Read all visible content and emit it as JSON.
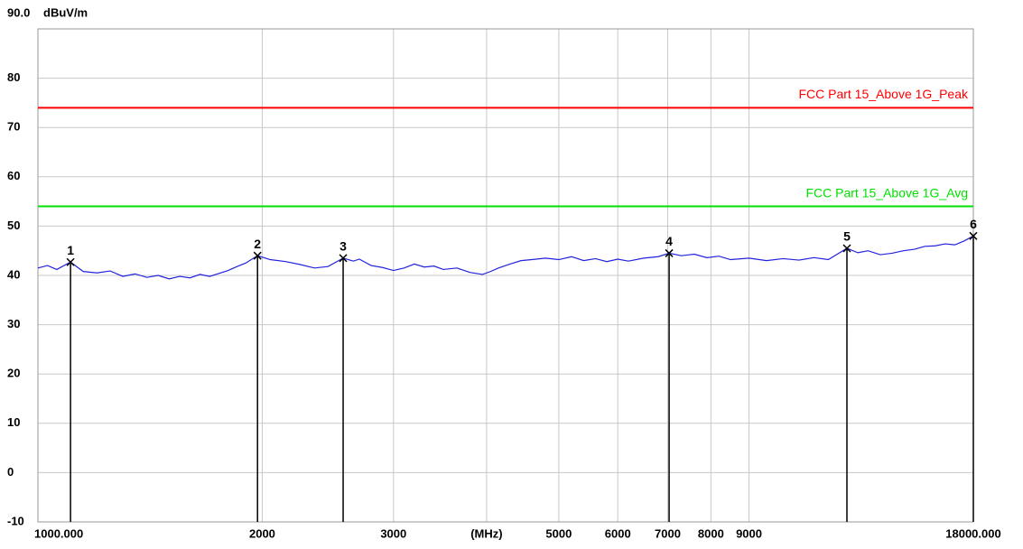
{
  "chart_data": {
    "type": "line",
    "ylabel": "dBuV/m",
    "xscale": "log",
    "grid": true,
    "xlim": [
      1000,
      18000
    ],
    "ylim": [
      -10,
      90
    ],
    "xticks": [
      {
        "value": 1000,
        "label": "1000.000"
      },
      2000,
      3000,
      {
        "value": 4000,
        "label": "(MHz)"
      },
      5000,
      6000,
      7000,
      8000,
      9000,
      {
        "value": 18000,
        "label": "18000.000"
      }
    ],
    "yticks": [
      {
        "value": 90,
        "label": "90.0"
      },
      80,
      70,
      60,
      50,
      40,
      30,
      20,
      10,
      0,
      -10
    ],
    "limits": [
      {
        "name": "FCC Part 15_Above 1G_Peak",
        "value": 74,
        "color": "#ff0000"
      },
      {
        "name": "FCC Part 15_Above 1G_Avg",
        "value": 54,
        "color": "#00e000"
      }
    ],
    "series": [
      {
        "color": "#2222dd",
        "x": [
          1000,
          1030,
          1060,
          1106,
          1150,
          1200,
          1250,
          1300,
          1350,
          1400,
          1450,
          1500,
          1550,
          1600,
          1650,
          1700,
          1750,
          1800,
          1850,
          1900,
          1971,
          2050,
          2150,
          2250,
          2350,
          2450,
          2568,
          2650,
          2700,
          2800,
          2900,
          3000,
          3100,
          3200,
          3300,
          3400,
          3500,
          3650,
          3800,
          3950,
          4050,
          4150,
          4300,
          4450,
          4600,
          4800,
          5000,
          5200,
          5400,
          5600,
          5800,
          6000,
          6200,
          6500,
          6800,
          7031,
          7300,
          7600,
          7900,
          8200,
          8500,
          9000,
          9500,
          10000,
          10500,
          11000,
          11500,
          12180,
          12600,
          13000,
          13500,
          14000,
          14500,
          15000,
          15500,
          16000,
          16500,
          17000,
          17500,
          18000
        ],
        "values": [
          41.5,
          42,
          41.2,
          42.7,
          40.8,
          40.5,
          40.9,
          39.8,
          40.3,
          39.6,
          40,
          39.3,
          39.8,
          39.5,
          40.2,
          39.8,
          40.4,
          41,
          41.8,
          42.5,
          44,
          43.2,
          42.8,
          42.2,
          41.5,
          41.8,
          43.5,
          42.9,
          43.3,
          42,
          41.6,
          41,
          41.5,
          42.3,
          41.7,
          41.9,
          41.2,
          41.5,
          40.6,
          40.2,
          40.8,
          41.5,
          42.3,
          43,
          43.2,
          43.5,
          43.2,
          43.8,
          43,
          43.4,
          42.8,
          43.3,
          42.9,
          43.5,
          43.8,
          44.5,
          44,
          44.3,
          43.6,
          43.9,
          43.2,
          43.5,
          43,
          43.4,
          43.1,
          43.6,
          43.2,
          45.5,
          44.6,
          45,
          44.2,
          44.5,
          45,
          45.3,
          45.9,
          46,
          46.4,
          46.2,
          47,
          48
        ]
      }
    ],
    "markers": [
      {
        "label": "1",
        "x": 1106,
        "value": 42.7
      },
      {
        "label": "2",
        "x": 1971,
        "value": 44
      },
      {
        "label": "3",
        "x": 2568,
        "value": 43.5
      },
      {
        "label": "4",
        "x": 7031,
        "value": 44.5
      },
      {
        "label": "5",
        "x": 12180,
        "value": 45.5
      },
      {
        "label": "6",
        "x": 18000,
        "value": 48
      }
    ]
  }
}
